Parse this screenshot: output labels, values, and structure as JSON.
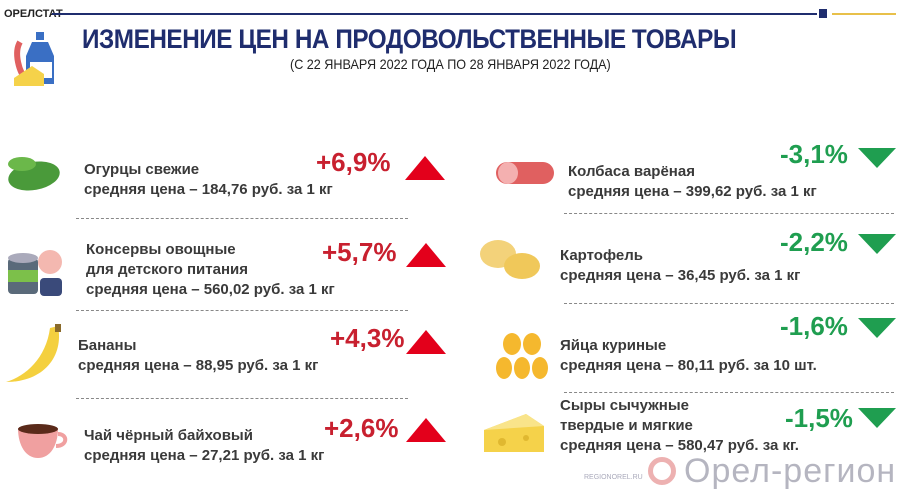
{
  "header": {
    "brand": "ОРЕЛСТАТ",
    "title": "ИЗМЕНЕНИЕ ЦЕН НА ПРОДОВОЛЬСТВЕННЫЕ ТОВАРЫ",
    "subtitle": "(С 22 ЯНВАРЯ 2022 ГОДА ПО 28 ЯНВАРЯ 2022 ГОДА)"
  },
  "colors": {
    "navy": "#1f2d6e",
    "up": "#c8202f",
    "down": "#1f9e50"
  },
  "left": [
    {
      "lines": [
        "Огурцы свежие",
        "средняя цена – 184,76 руб. за 1 кг"
      ],
      "change": "+6,9%",
      "icon": "cucumber-icon"
    },
    {
      "lines": [
        "Консервы овощные",
        "для детского питания",
        "средняя цена –  560,02 руб. за 1 кг"
      ],
      "change": "+5,7%",
      "icon": "canned-food-icon"
    },
    {
      "lines": [
        "Бананы",
        "средняя цена – 88,95 руб. за 1 кг"
      ],
      "change": "+4,3%",
      "icon": "banana-icon"
    },
    {
      "lines": [
        "Чай чёрный байховый",
        "средняя цена – 27,21 руб. за 1 кг"
      ],
      "change": "+2,6%",
      "icon": "tea-cup-icon"
    }
  ],
  "right": [
    {
      "lines": [
        "Колбаса варёная",
        "средняя цена – 399,62 руб. за 1 кг"
      ],
      "change": "-3,1%",
      "icon": "sausage-icon"
    },
    {
      "lines": [
        "Картофель",
        "средняя цена – 36,45 руб. за 1 кг"
      ],
      "change": "-2,2%",
      "icon": "potato-icon"
    },
    {
      "lines": [
        "Яйца куриные",
        "средняя цена – 80,11 руб. за 10 шт."
      ],
      "change": "-1,6%",
      "icon": "eggs-icon"
    },
    {
      "lines": [
        "Сыры сычужные",
        "твердые и мягкие",
        "средняя цена – 580,47 руб. за кг."
      ],
      "change": "-1,5%",
      "icon": "cheese-icon"
    }
  ],
  "watermark": {
    "text": "Орел-регион",
    "url": "REGIONOREL.RU"
  }
}
